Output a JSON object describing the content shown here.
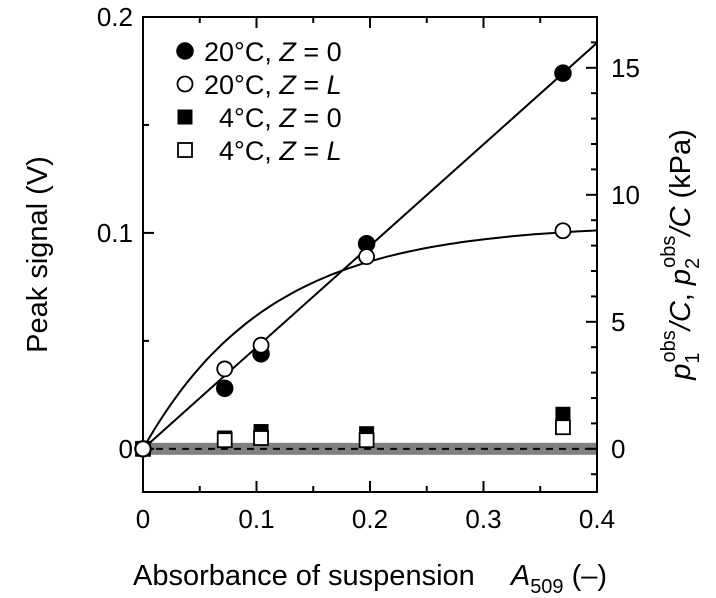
{
  "chart_data": {
    "type": "scatter",
    "title": "",
    "xlabel": {
      "text": "Absorbance of suspension",
      "symbol": "A",
      "subscript": "509",
      "unit": "(–)"
    },
    "ylabel": "Peak signal (V)",
    "y2label": {
      "p1": "p",
      "p1_sub": "1",
      "p1_sup": "obs",
      "p2": "p",
      "p2_sub": "2",
      "p2_sup": "obs",
      "over": "/C",
      "sep": ", ",
      "unit": " (kPa)"
    },
    "xlim": [
      0,
      0.4
    ],
    "ylim": [
      -0.02,
      0.2
    ],
    "y2lim": [
      -1.7,
      17
    ],
    "x_ticks": [
      "0",
      "0.1",
      "0.2",
      "0.3",
      "0.4"
    ],
    "y_ticks": [
      "0",
      "0.1",
      "0.2"
    ],
    "y2_ticks": [
      "0",
      "5",
      "10",
      "15"
    ],
    "grid": false,
    "legend_position": "top-left",
    "series": [
      {
        "name": "20°C, Z = 0",
        "label_main": "20°C, ",
        "label_var": "Z",
        "label_rest": " = 0",
        "marker": "filled-circle",
        "x": [
          0,
          0.072,
          0.104,
          0.197,
          0.37
        ],
        "y": [
          0,
          0.028,
          0.044,
          0.095,
          0.174
        ]
      },
      {
        "name": "20°C, Z = L",
        "label_main": "20°C, ",
        "label_var": "Z",
        "label_rest": " = ",
        "label_var2": "L",
        "marker": "open-circle",
        "x": [
          0,
          0.072,
          0.104,
          0.197,
          0.37
        ],
        "y": [
          0,
          0.037,
          0.048,
          0.089,
          0.101
        ]
      },
      {
        "name": "4°C, Z = 0",
        "label_main": "4°C, ",
        "label_var": "Z",
        "label_rest": " = 0",
        "marker": "filled-square",
        "x": [
          0,
          0.072,
          0.104,
          0.197,
          0.37
        ],
        "y": [
          0,
          0.005,
          0.008,
          0.007,
          0.016
        ]
      },
      {
        "name": "4°C, Z = L",
        "label_main": "4°C, ",
        "label_var": "Z",
        "label_rest": " = ",
        "label_var2": "L",
        "marker": "open-square",
        "x": [
          0,
          0.072,
          0.104,
          0.197,
          0.37
        ],
        "y": [
          0,
          0.004,
          0.005,
          0.004,
          0.01
        ]
      }
    ],
    "fit_lines": [
      {
        "kind": "linear",
        "slope": 0.47,
        "through_origin": true
      },
      {
        "kind": "saturating",
        "asymptote": 0.104,
        "rate": 9.0
      }
    ],
    "baseline": {
      "y": 0,
      "style": "dashed",
      "band_color": "#808080"
    }
  }
}
